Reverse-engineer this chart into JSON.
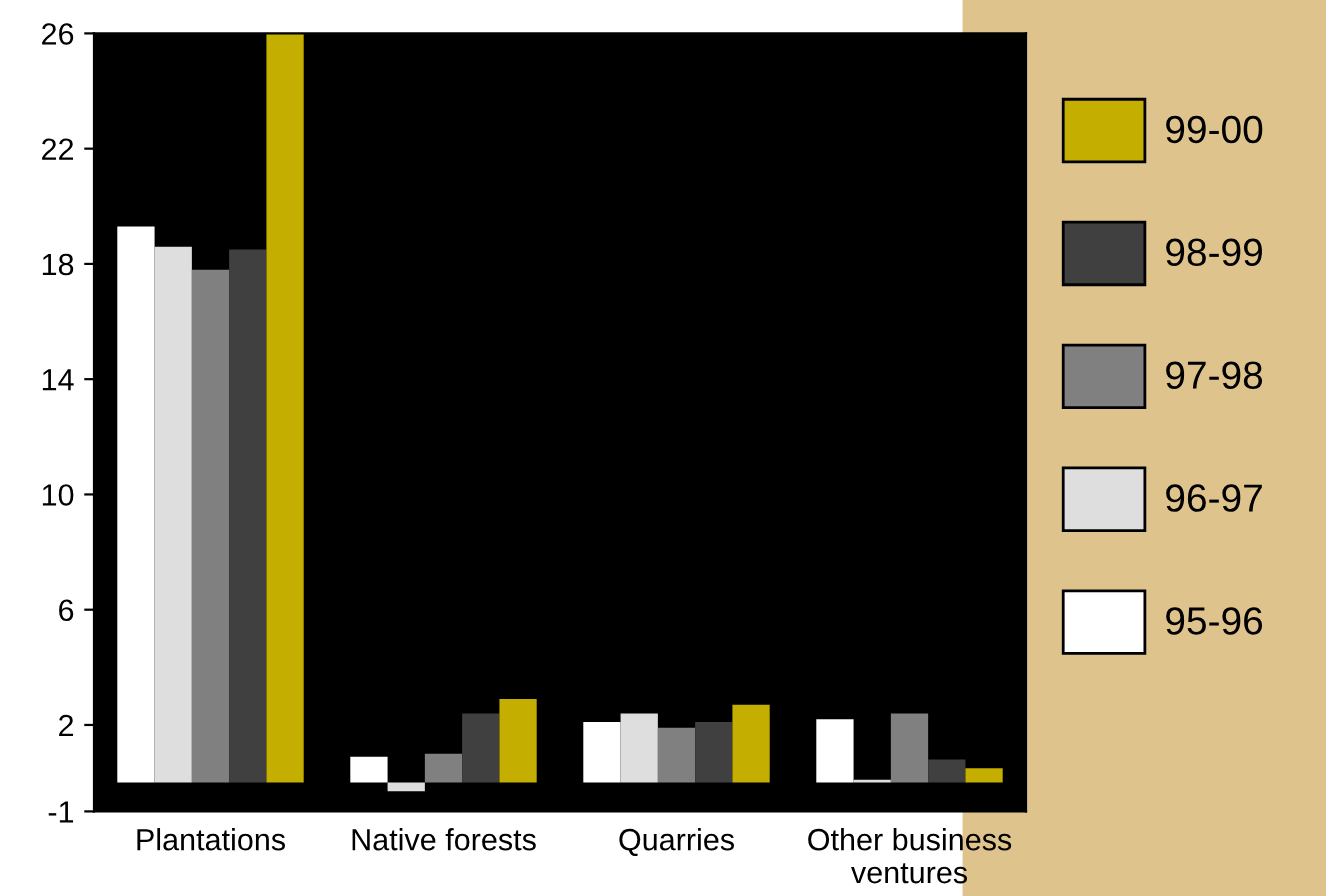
{
  "chart_data": {
    "type": "bar",
    "categories": [
      "Plantations",
      "Native forests",
      "Quarries",
      "Other business ventures"
    ],
    "series": [
      {
        "name": "95-96",
        "color": "#ffffff",
        "values": [
          19.3,
          0.9,
          2.1,
          2.2
        ]
      },
      {
        "name": "96-97",
        "color": "#dedede",
        "values": [
          18.6,
          -0.3,
          2.4,
          0.1
        ]
      },
      {
        "name": "97-98",
        "color": "#808080",
        "values": [
          17.8,
          1.0,
          1.9,
          2.4
        ]
      },
      {
        "name": "98-99",
        "color": "#404040",
        "values": [
          18.5,
          2.4,
          2.1,
          0.8
        ]
      },
      {
        "name": "99-00",
        "color": "#c4ae00",
        "values": [
          26,
          2.9,
          2.7,
          0.5
        ]
      }
    ],
    "ylim": [
      -1,
      26
    ],
    "yticks": [
      -1,
      2,
      6,
      10,
      14,
      18,
      22,
      26
    ],
    "grid": false,
    "legend": "right"
  }
}
